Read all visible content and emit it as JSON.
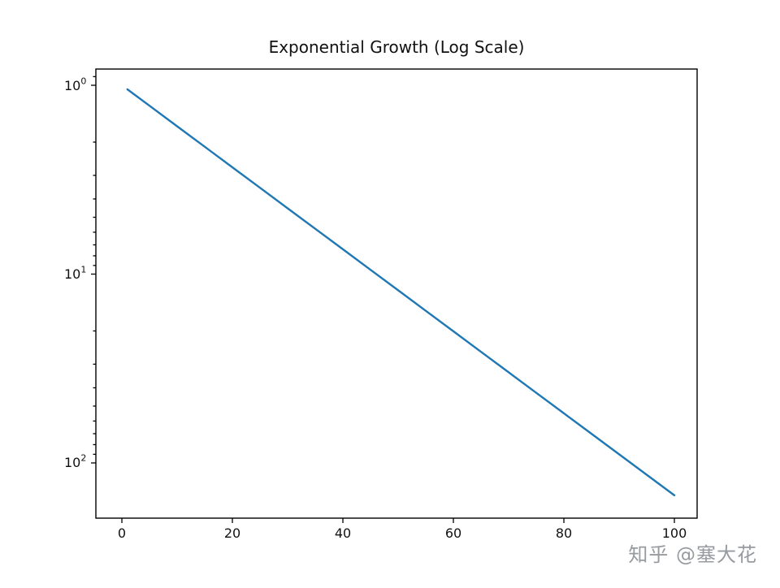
{
  "chart_data": {
    "type": "line",
    "title": "Exponential Growth (Log Scale)",
    "x": [
      1,
      5,
      10,
      15,
      20,
      25,
      30,
      35,
      40,
      45,
      50,
      55,
      60,
      65,
      70,
      75,
      80,
      85,
      90,
      95,
      100
    ],
    "y": [
      1.051,
      1.284,
      1.649,
      2.117,
      2.718,
      3.49,
      4.482,
      5.755,
      7.389,
      9.488,
      12.182,
      15.643,
      20.086,
      25.79,
      33.115,
      42.521,
      54.598,
      70.105,
      90.017,
      115.584,
      148.413
    ],
    "x_ticks": [
      0,
      20,
      40,
      60,
      80,
      100
    ],
    "y_tick_exponents": [
      0,
      1,
      2
    ],
    "y_scale": "log",
    "y_axis_inverted_visually": true,
    "xlim": [
      -4,
      105
    ],
    "grid": false,
    "legend_position": "none",
    "line_color": "#1f77b4"
  },
  "ui": {
    "title": "Exponential Growth (Log Scale)",
    "x_tick_labels": [
      "0",
      "20",
      "40",
      "60",
      "80",
      "100"
    ],
    "y_ticks": [
      {
        "base": "10",
        "exp": "0"
      },
      {
        "base": "10",
        "exp": "1"
      },
      {
        "base": "10",
        "exp": "2"
      }
    ],
    "watermark": "知乎 @塞大花"
  },
  "colors": {
    "line": "#1f77b4",
    "spine": "#000000",
    "watermark_gray": "#8c9096"
  }
}
